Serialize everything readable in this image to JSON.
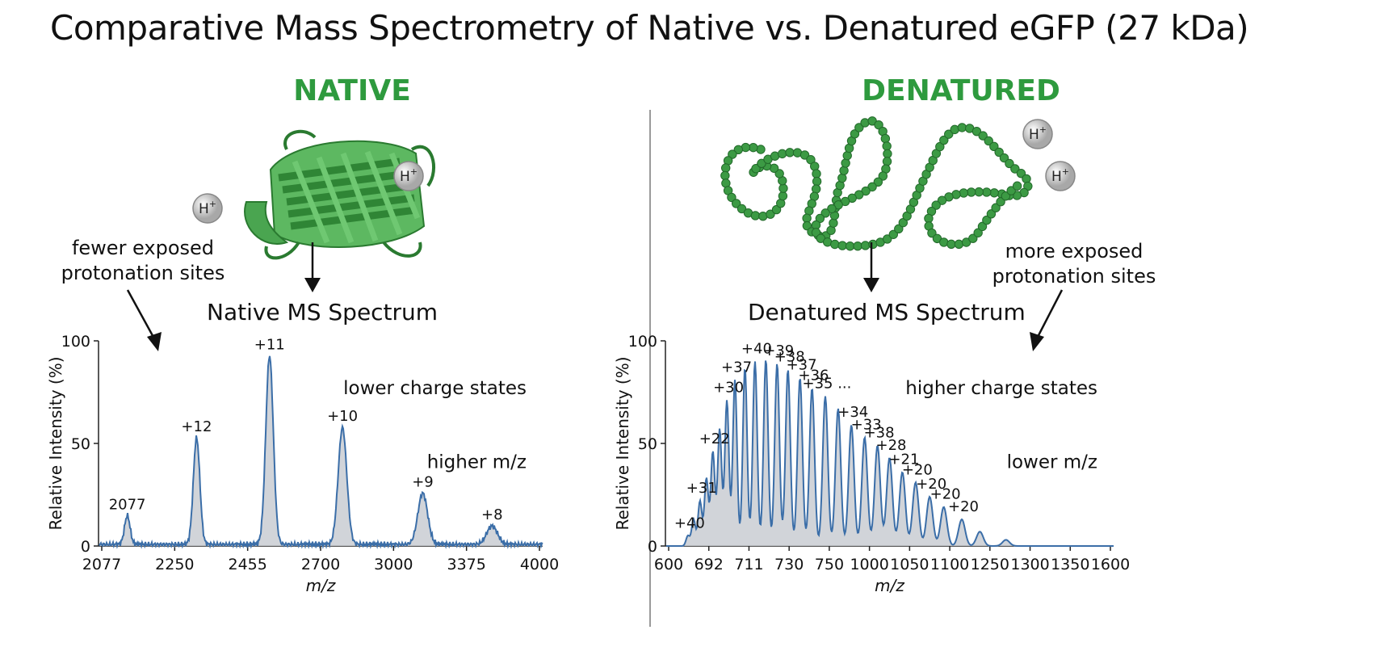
{
  "title": "Comparative Mass Spectrometry of Native vs. Denatured eGFP (27 kDa)",
  "native": {
    "heading": "NATIVE",
    "note": [
      "fewer exposed",
      "protonation sites"
    ],
    "subtitle": "Native MS Spectrum",
    "proton_label": "H+"
  },
  "denatured": {
    "heading": "DENATURED",
    "note": [
      "more exposed",
      "protonation sites"
    ],
    "subtitle": "Denatured MS Spectrum",
    "proton_label": "H+"
  },
  "colors": {
    "accent_green": "#2e9a3e",
    "trace_blue": "#3b6ea8",
    "fill_gray": "#c9ccd2",
    "protein_green": "#3c9a44"
  },
  "chart_data": [
    {
      "type": "line",
      "subtitle": "Native MS Spectrum",
      "xlabel": "m/z",
      "ylabel": "Relative Intensity (%)",
      "y_ticks": [
        "0",
        "50",
        "100"
      ],
      "ylim": [
        0,
        100
      ],
      "x_tick_labels": [
        "2077",
        "2250",
        "2455",
        "2700",
        "3000",
        "3375",
        "4000"
      ],
      "annotations": [
        "lower charge states",
        "higher m/z"
      ],
      "peaks": [
        {
          "label": "2077",
          "tick_index": 0.35,
          "intensity": 14
        },
        {
          "label": "+12",
          "tick_index": 1.3,
          "intensity": 52
        },
        {
          "label": "+11",
          "tick_index": 2.3,
          "intensity": 92
        },
        {
          "label": "+10",
          "tick_index": 3.3,
          "intensity": 57
        },
        {
          "label": "+9",
          "tick_index": 4.4,
          "intensity": 25
        },
        {
          "label": "+8",
          "tick_index": 5.35,
          "intensity": 9
        }
      ]
    },
    {
      "type": "line",
      "subtitle": "Denatured MS Spectrum",
      "xlabel": "m/z",
      "ylabel": "Relative Intensity (%)",
      "y_ticks": [
        "0",
        "50",
        "100"
      ],
      "ylim": [
        0,
        100
      ],
      "x_tick_labels": [
        "600",
        "692",
        "711",
        "730",
        "750",
        "1000",
        "1050",
        "1100",
        "1250",
        "1300",
        "1350",
        "1600"
      ],
      "annotations": [
        "higher charge states",
        "lower m/z"
      ],
      "peak_labels": [
        {
          "label": "+40",
          "peak_index": 0
        },
        {
          "label": "+31",
          "peak_index": 2
        },
        {
          "label": "+22",
          "peak_index": 4
        },
        {
          "label": "+30",
          "peak_index": 6
        },
        {
          "label": "+37",
          "peak_index": 7
        },
        {
          "label": "+40",
          "peak_index": 9
        },
        {
          "label": "+39",
          "peak_index": 11
        },
        {
          "label": "+38",
          "peak_index": 12
        },
        {
          "label": "+37",
          "peak_index": 13
        },
        {
          "label": "+36",
          "peak_index": 14
        },
        {
          "label": "+35 ...",
          "peak_index": 15
        },
        {
          "label": "+34",
          "peak_index": 17
        },
        {
          "label": "+33",
          "peak_index": 18
        },
        {
          "label": "+38",
          "peak_index": 19
        },
        {
          "label": "+28",
          "peak_index": 20
        },
        {
          "label": "+21",
          "peak_index": 21
        },
        {
          "label": "+20",
          "peak_index": 22
        },
        {
          "label": "+20",
          "peak_index": 23
        },
        {
          "label": "+20",
          "peak_index": 24
        },
        {
          "label": "+20",
          "peak_index": 25
        }
      ],
      "peaks": [
        {
          "tick_index": 0.48,
          "intensity": 5
        },
        {
          "tick_index": 0.62,
          "intensity": 13
        },
        {
          "tick_index": 0.78,
          "intensity": 22
        },
        {
          "tick_index": 0.94,
          "intensity": 33
        },
        {
          "tick_index": 1.1,
          "intensity": 46
        },
        {
          "tick_index": 1.27,
          "intensity": 57
        },
        {
          "tick_index": 1.45,
          "intensity": 71
        },
        {
          "tick_index": 1.65,
          "intensity": 81
        },
        {
          "tick_index": 1.9,
          "intensity": 87
        },
        {
          "tick_index": 2.15,
          "intensity": 90
        },
        {
          "tick_index": 2.42,
          "intensity": 91
        },
        {
          "tick_index": 2.7,
          "intensity": 89
        },
        {
          "tick_index": 2.97,
          "intensity": 86
        },
        {
          "tick_index": 3.27,
          "intensity": 82
        },
        {
          "tick_index": 3.57,
          "intensity": 77
        },
        {
          "tick_index": 3.9,
          "intensity": 73
        },
        {
          "tick_index": 4.22,
          "intensity": 67
        },
        {
          "tick_index": 4.55,
          "intensity": 59
        },
        {
          "tick_index": 4.88,
          "intensity": 53
        },
        {
          "tick_index": 5.2,
          "intensity": 49
        },
        {
          "tick_index": 5.5,
          "intensity": 43
        },
        {
          "tick_index": 5.82,
          "intensity": 36
        },
        {
          "tick_index": 6.15,
          "intensity": 31
        },
        {
          "tick_index": 6.5,
          "intensity": 24
        },
        {
          "tick_index": 6.85,
          "intensity": 19
        },
        {
          "tick_index": 7.3,
          "intensity": 13
        },
        {
          "tick_index": 7.75,
          "intensity": 7
        },
        {
          "tick_index": 8.4,
          "intensity": 3
        }
      ]
    }
  ]
}
